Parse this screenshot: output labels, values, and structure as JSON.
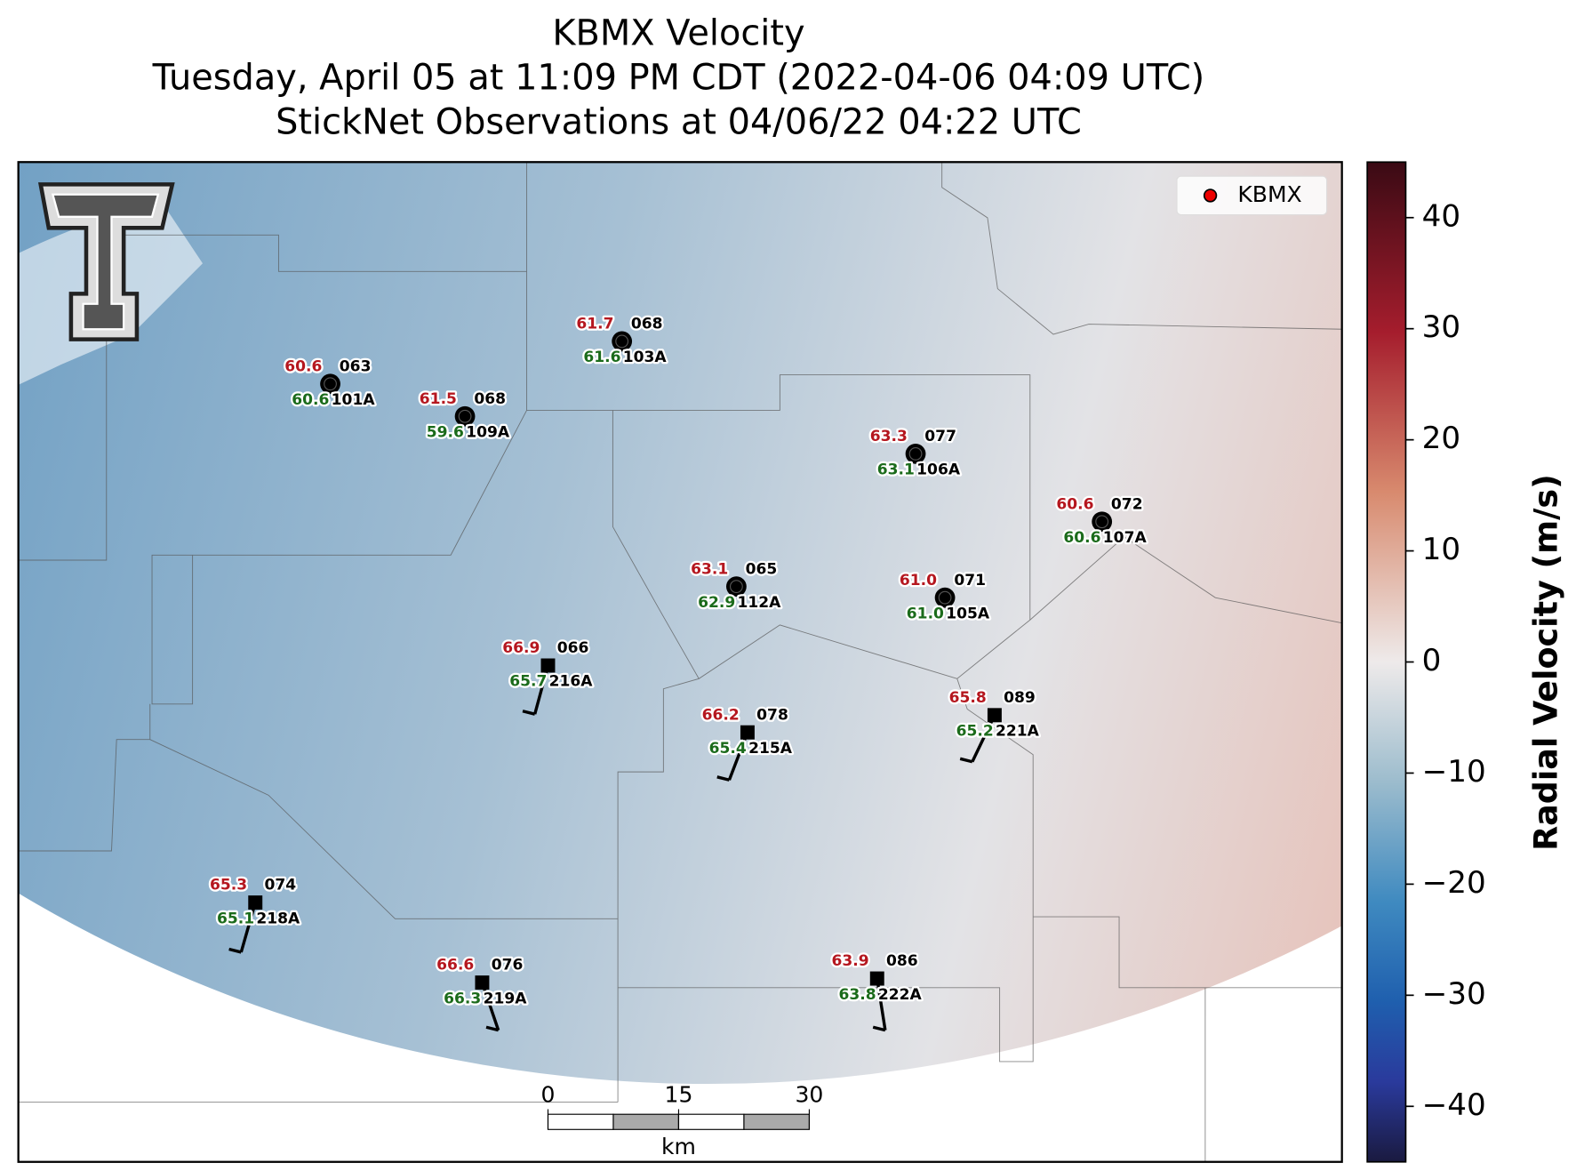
{
  "header": {
    "title": [
      "KBMX Velocity",
      "Tuesday, April 05 at 11:09 PM CDT (2022-04-06 04:09 UTC)",
      "StickNet Observations at 04/06/22 04:22 UTC"
    ]
  },
  "legend": {
    "label": "KBMX"
  },
  "stations": [
    {
      "id": "101A",
      "temperature": "60.6",
      "dewpoint": "60.6",
      "wind_direction": "063"
    },
    {
      "id": "109A",
      "temperature": "61.5",
      "dewpoint": "59.6",
      "wind_direction": "068"
    },
    {
      "id": "103A",
      "temperature": "61.7",
      "dewpoint": "61.6",
      "wind_direction": "068"
    },
    {
      "id": "106A",
      "temperature": "63.3",
      "dewpoint": "63.1",
      "wind_direction": "077"
    },
    {
      "id": "107A",
      "temperature": "60.6",
      "dewpoint": "60.6",
      "wind_direction": "072"
    },
    {
      "id": "112A",
      "temperature": "63.1",
      "dewpoint": "62.9",
      "wind_direction": "065"
    },
    {
      "id": "105A",
      "temperature": "61.0",
      "dewpoint": "61.0",
      "wind_direction": "071"
    },
    {
      "id": "216A",
      "temperature": "66.9",
      "dewpoint": "65.7",
      "wind_direction": "066"
    },
    {
      "id": "215A",
      "temperature": "66.2",
      "dewpoint": "65.4",
      "wind_direction": "078"
    },
    {
      "id": "221A",
      "temperature": "65.8",
      "dewpoint": "65.2",
      "wind_direction": "089"
    },
    {
      "id": "218A",
      "temperature": "65.3",
      "dewpoint": "65.1",
      "wind_direction": "074"
    },
    {
      "id": "219A",
      "temperature": "66.6",
      "dewpoint": "66.3",
      "wind_direction": "076"
    },
    {
      "id": "222A",
      "temperature": "63.9",
      "dewpoint": "63.8",
      "wind_direction": "086"
    }
  ],
  "colorbar": {
    "label": "Radial Velocity (m/s)",
    "lim": [
      -45,
      45
    ],
    "ticks": [
      {
        "value": -40,
        "label": "−40"
      },
      {
        "value": -30,
        "label": "−30"
      },
      {
        "value": -20,
        "label": "−20"
      },
      {
        "value": -10,
        "label": "−10"
      },
      0,
      10,
      20,
      30,
      40
    ]
  },
  "scale_bar": {
    "ticks": [
      0,
      15,
      30
    ],
    "unit": "km"
  }
}
